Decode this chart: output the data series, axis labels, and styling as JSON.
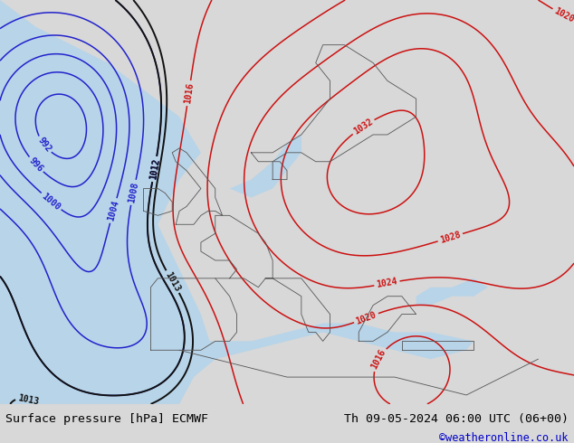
{
  "title_left": "Surface pressure [hPa] ECMWF",
  "title_right": "Th 09-05-2024 06:00 UTC (06+00)",
  "credit": "©weatheronline.co.uk",
  "land_color": "#c8dba8",
  "sea_color": "#b8d4e8",
  "atlantic_color": "#b0cce0",
  "footer_bg": "#d8d8d8",
  "figsize": [
    6.34,
    4.9
  ],
  "dpi": 100
}
